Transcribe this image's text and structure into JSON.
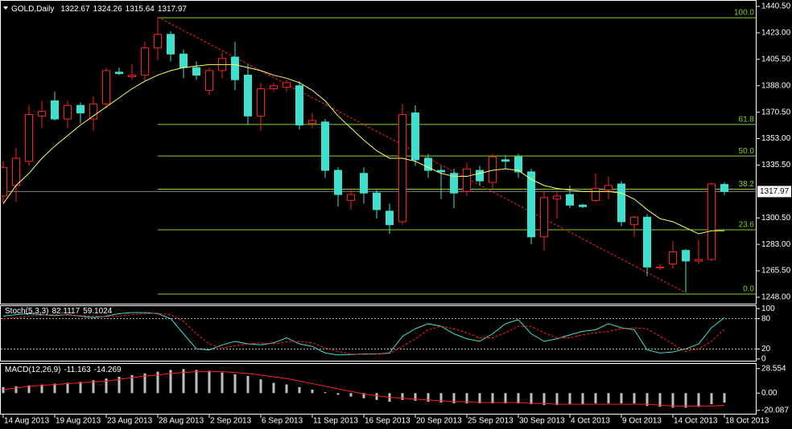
{
  "chart_data": {
    "type": "candlestick",
    "title": "GOLD,Daily",
    "categories": [
      "14 Aug 2013",
      null,
      null,
      null,
      "19 Aug 2013",
      null,
      null,
      null,
      "23 Aug 2013",
      null,
      null,
      null,
      "28 Aug 2013",
      null,
      null,
      null,
      "2 Sep 2013",
      null,
      null,
      null,
      "6 Sep 2013",
      null,
      null,
      null,
      "11 Sep 2013",
      null,
      null,
      null,
      "16 Sep 2013",
      null,
      null,
      null,
      "20 Sep 2013",
      null,
      null,
      null,
      "25 Sep 2013",
      null,
      null,
      null,
      "30 Sep 2013",
      null,
      null,
      null,
      "4 Oct 2013",
      null,
      null,
      null,
      "9 Oct 2013",
      null,
      null,
      null,
      "14 Oct 2013",
      null,
      null,
      null,
      "18 Oct 2013"
    ],
    "open": [
      1315,
      1322,
      1338,
      1368,
      1378,
      1366,
      1375,
      1366,
      1376,
      1397,
      1394,
      1395,
      1413,
      1422,
      1409,
      1400,
      1385,
      1398,
      1407,
      1395,
      1368,
      1386,
      1387,
      1388,
      1363,
      1364,
      1332,
      1312,
      1330,
      1317,
      1305,
      1298,
      1370,
      1340,
      1332,
      1330,
      1318,
      1332,
      1324,
      1339,
      1341,
      1331,
      1288,
      1313,
      1316,
      1309,
      1312,
      1319,
      1323,
      1296,
      1301,
      1268,
      1270,
      1279,
      1272,
      1273,
      1322.67
    ],
    "high": [
      1338,
      1347,
      1375,
      1378,
      1384,
      1378,
      1377,
      1381,
      1400,
      1400,
      1402,
      1417,
      1433,
      1424,
      1412,
      1404,
      1400,
      1410,
      1417,
      1402,
      1390,
      1390,
      1392,
      1391,
      1370,
      1366,
      1334,
      1320,
      1334,
      1319,
      1310,
      1376,
      1375,
      1343,
      1335,
      1333,
      1337,
      1335,
      1343,
      1342,
      1343,
      1333,
      1318,
      1318,
      1322,
      1310,
      1330,
      1328,
      1325,
      1302,
      1303,
      1270,
      1285,
      1280,
      1286,
      1324,
      1324.26
    ],
    "low": [
      1310,
      1311,
      1335,
      1360,
      1365,
      1360,
      1363,
      1358,
      1373,
      1395,
      1392,
      1391,
      1405,
      1404,
      1393,
      1392,
      1382,
      1393,
      1385,
      1362,
      1358,
      1384,
      1384,
      1359,
      1360,
      1327,
      1308,
      1306,
      1310,
      1300,
      1290,
      1296,
      1335,
      1327,
      1313,
      1307,
      1315,
      1322,
      1320,
      1333,
      1327,
      1283,
      1279,
      1300,
      1307,
      1307,
      1311,
      1313,
      1295,
      1288,
      1262,
      1266,
      1267,
      1251,
      1270,
      1272,
      1315.64
    ],
    "close": [
      1334,
      1340,
      1369,
      1371,
      1366,
      1375,
      1370,
      1376,
      1398,
      1396,
      1395,
      1413,
      1422,
      1409,
      1400,
      1395,
      1398,
      1406,
      1392,
      1368,
      1386,
      1388,
      1390,
      1362,
      1365,
      1332,
      1316,
      1316,
      1317,
      1306,
      1296,
      1369,
      1339,
      1332,
      1331,
      1317,
      1333,
      1325,
      1341,
      1338,
      1331,
      1288,
      1314,
      1315,
      1309,
      1308,
      1320,
      1322,
      1298,
      1301,
      1268,
      1268,
      1278,
      1272,
      1273,
      1323,
      1317.97
    ],
    "up_color": "#ff2020",
    "down_color": "#40e0d0",
    "ylim": [
      1243.75,
      1444.75
    ],
    "yticks": [
      {
        "value": 1440.5,
        "label": "1440.50"
      },
      {
        "value": 1423,
        "label": "1423.00"
      },
      {
        "value": 1405.5,
        "label": "1405.50"
      },
      {
        "value": 1388,
        "label": "1388.00"
      },
      {
        "value": 1370.5,
        "label": "1370.50"
      },
      {
        "value": 1353,
        "label": "1353.00"
      },
      {
        "value": 1335.5,
        "label": "1335.50"
      },
      {
        "value": 1300.5,
        "label": "1300.50"
      },
      {
        "value": 1283,
        "label": "1283.00"
      },
      {
        "value": 1265.5,
        "label": "1265.50"
      },
      {
        "value": 1248,
        "label": "1248.00"
      }
    ],
    "price_line_color": "#808080",
    "ma": {
      "color": "#ffff60",
      "values": [
        1310,
        1322,
        1330,
        1340,
        1348,
        1355,
        1362,
        1368,
        1374,
        1380,
        1386,
        1391,
        1395,
        1398,
        1400,
        1401,
        1402,
        1402,
        1402,
        1400,
        1398,
        1395,
        1393,
        1390,
        1385,
        1378,
        1368,
        1360,
        1352,
        1345,
        1340,
        1340,
        1338,
        1334,
        1330,
        1328,
        1328,
        1330,
        1332,
        1333,
        1332,
        1326,
        1322,
        1320,
        1319,
        1318,
        1318,
        1318,
        1317,
        1313,
        1306,
        1300,
        1298,
        1294,
        1290,
        1292,
        1292
      ]
    },
    "fib": {
      "color": "#7fd32a",
      "levels": [
        {
          "label": "100.0",
          "value": 1433
        },
        {
          "label": "61.8",
          "value": 1362.4
        },
        {
          "label": "50.0",
          "value": 1341.5
        },
        {
          "label": "38.2",
          "value": 1319.5
        },
        {
          "label": "23.6",
          "value": 1292.7
        },
        {
          "label": "0.0",
          "value": 1250.1
        }
      ]
    },
    "trendline": {
      "color": "#ff2020",
      "start": 1433.5,
      "end": 1251
    },
    "stoch": {
      "name": "Stoch(5,3,3)",
      "ylim": [
        -5,
        105
      ],
      "yticks": [
        100,
        80,
        20,
        0
      ],
      "main": {
        "color": "#40e0d0",
        "values": [
          85,
          88,
          90,
          88,
          86,
          88,
          85,
          82,
          85,
          90,
          92,
          92,
          90,
          80,
          50,
          20,
          18,
          28,
          35,
          30,
          28,
          32,
          42,
          30,
          25,
          12,
          8,
          9,
          10,
          10,
          12,
          45,
          60,
          70,
          65,
          50,
          40,
          35,
          50,
          70,
          78,
          50,
          35,
          40,
          48,
          55,
          58,
          70,
          62,
          58,
          18,
          12,
          14,
          20,
          30,
          62,
          82.1117
        ]
      },
      "signal": {
        "color": "#ff2020",
        "values": [
          80,
          82,
          85,
          87,
          88,
          87,
          86,
          85,
          84,
          85,
          88,
          90,
          91,
          88,
          75,
          50,
          30,
          22,
          26,
          30,
          32,
          30,
          34,
          35,
          32,
          22,
          15,
          10,
          9,
          10,
          11,
          25,
          40,
          58,
          65,
          60,
          52,
          42,
          42,
          52,
          65,
          65,
          52,
          42,
          42,
          48,
          52,
          55,
          60,
          62,
          60,
          45,
          30,
          15,
          20,
          35,
          59.1024
        ]
      }
    },
    "macd": {
      "name": "MACD(12,26,9)",
      "ylim": [
        -25,
        34
      ],
      "yticks": [
        28.554,
        {
          "value": 0,
          "label": "0.00"
        },
        -20.087
      ],
      "histogram": {
        "color": "#c0c0c0",
        "values": [
          7,
          8,
          9,
          10,
          11,
          12,
          13,
          15,
          17,
          19,
          21,
          23,
          25,
          27,
          28,
          27,
          26,
          24,
          22,
          20,
          16,
          12,
          10,
          7,
          4,
          1,
          -2,
          -4,
          -6,
          -8,
          -10,
          -8,
          -9,
          -10,
          -11,
          -12,
          -12,
          -12,
          -12,
          -12,
          -12,
          -13,
          -14,
          -14,
          -13,
          -13,
          -12,
          -12,
          -12,
          -12,
          -15,
          -16,
          -17,
          -17,
          -16,
          -13,
          -11.163
        ]
      },
      "signal": {
        "color": "#ff2020",
        "values": [
          4,
          6,
          8,
          9,
          10,
          11,
          12,
          13,
          14,
          16,
          18,
          20,
          21,
          23,
          24,
          25,
          25,
          25,
          24,
          23,
          21,
          19,
          17,
          14,
          11,
          8,
          5,
          2,
          -1,
          -3,
          -5,
          -6,
          -7,
          -8,
          -9,
          -10,
          -10,
          -11,
          -11,
          -11,
          -11,
          -12,
          -12,
          -13,
          -13,
          -13,
          -13,
          -13,
          -13,
          -13,
          -13,
          -14,
          -15,
          -15,
          -15,
          -15,
          -14.269
        ]
      }
    }
  }
}
